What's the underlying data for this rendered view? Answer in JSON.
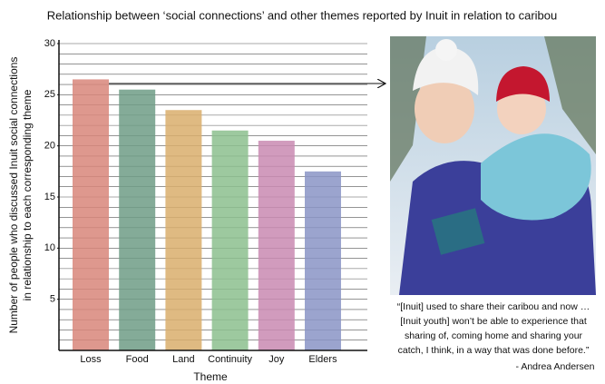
{
  "chart_data": {
    "type": "bar",
    "title": "Relationship between ‘social connections’ and other themes reported by Inuit in relation to caribou",
    "y_label_lines": [
      "Number of people who discussed Inuit social connections",
      "in relationship to each corresponding theme"
    ],
    "x_label": "Theme",
    "categories": [
      "Loss",
      "Food",
      "Land",
      "Continuity",
      "Joy",
      "Elders"
    ],
    "values": [
      26.5,
      25.5,
      23.5,
      21.5,
      20.5,
      17.5
    ],
    "colors": [
      "#d8867a",
      "#6f9c86",
      "#d9ae6c",
      "#8cbf8e",
      "#c98ab1",
      "#8a94c6"
    ],
    "ylim": [
      0,
      30
    ],
    "yticks": [
      5,
      10,
      15,
      20,
      25,
      30
    ],
    "minor_yticks": [
      1,
      2,
      3,
      4,
      5,
      6,
      7,
      8,
      9,
      10,
      11,
      12,
      13,
      14,
      15,
      16,
      17,
      18,
      19,
      20,
      21,
      22,
      23,
      24,
      25,
      26,
      27,
      28,
      29,
      30
    ],
    "grid": true,
    "quote_lines": [
      "“[Inuit] used to share their caribou and now …",
      "[Inuit youth] won’t be able to experience that",
      "sharing of, coming home and sharing your",
      "catch, I think, in a way that was done before.”"
    ],
    "attribution": "- Andrea Andersen"
  }
}
